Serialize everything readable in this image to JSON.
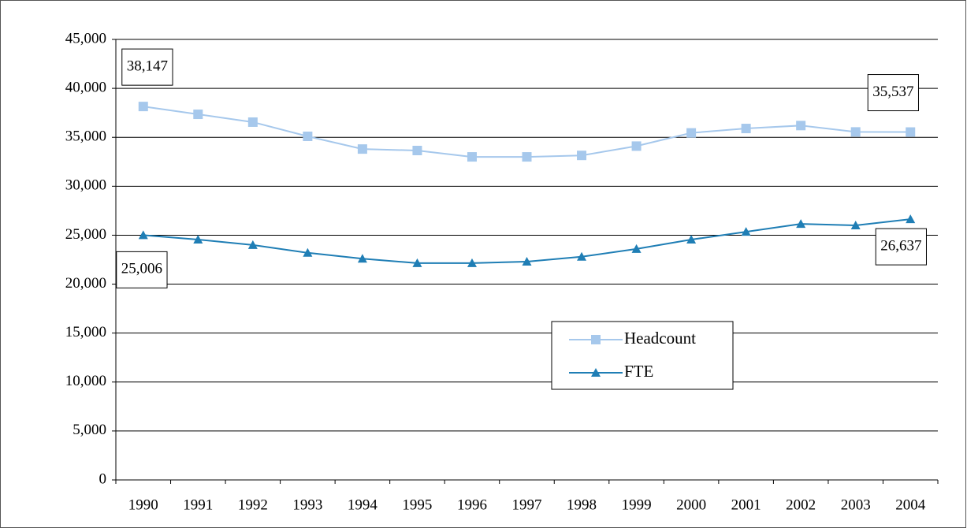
{
  "chart_data": {
    "type": "line",
    "categories": [
      "1990",
      "1991",
      "1992",
      "1993",
      "1994",
      "1995",
      "1996",
      "1997",
      "1998",
      "1999",
      "2000",
      "2001",
      "2002",
      "2003",
      "2004"
    ],
    "series": [
      {
        "name": "Headcount",
        "color": "#a6c8ec",
        "marker": "square",
        "values": [
          38147,
          37350,
          36550,
          35100,
          33800,
          33650,
          33000,
          33000,
          33150,
          34100,
          35450,
          35900,
          36200,
          35550,
          35537
        ],
        "value_labels": [
          "38,147",
          null,
          null,
          null,
          null,
          null,
          null,
          null,
          null,
          null,
          null,
          null,
          null,
          null,
          "35,537"
        ]
      },
      {
        "name": "FTE",
        "color": "#1f7eb5",
        "marker": "triangle",
        "values": [
          25006,
          24550,
          24000,
          23200,
          22600,
          22150,
          22150,
          22300,
          22800,
          23600,
          24550,
          25350,
          26150,
          26000,
          26637
        ],
        "value_labels": [
          "25,006",
          null,
          null,
          null,
          null,
          null,
          null,
          null,
          null,
          null,
          null,
          null,
          null,
          null,
          "26,637"
        ]
      }
    ],
    "ylim": [
      0,
      45000
    ],
    "yticks": [
      0,
      {
        "value": 5000,
        "label": "5,000"
      },
      {
        "value": 10000,
        "label": "10,000"
      },
      {
        "value": 15000,
        "label": "15,000"
      },
      {
        "value": 20000,
        "label": "20,000"
      },
      {
        "value": 25000,
        "label": "25,000"
      },
      {
        "value": 30000,
        "label": "30,000"
      },
      {
        "value": 35000,
        "label": "35,000"
      },
      {
        "value": 40000,
        "label": "40,000"
      },
      {
        "value": 45000,
        "label": "45,000"
      }
    ],
    "grid": true
  }
}
